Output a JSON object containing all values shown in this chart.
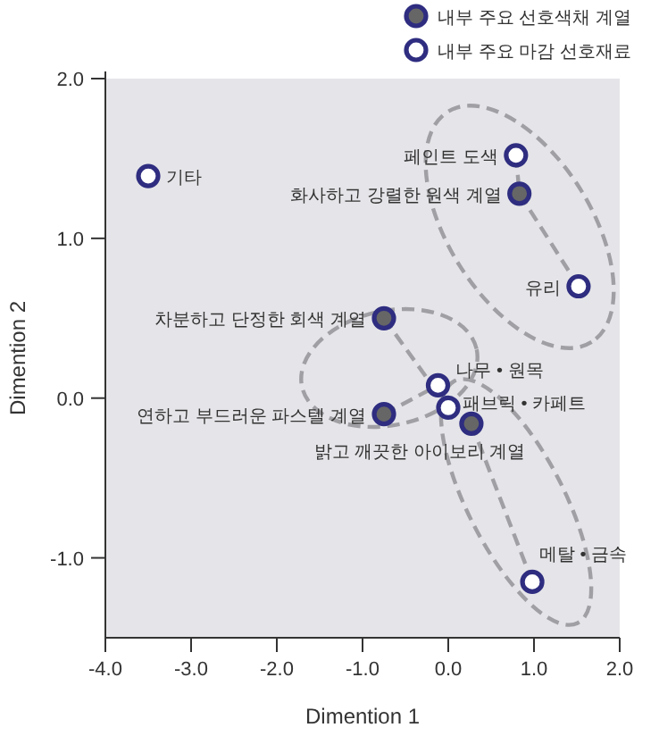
{
  "chart_data": {
    "type": "scatter",
    "xlabel": "Dimention 1",
    "ylabel": "Dimention 2",
    "xlim": [
      -4,
      2
    ],
    "ylim": [
      -1.5,
      2
    ],
    "xticks": [
      {
        "value": -4,
        "label": "-4.0"
      },
      {
        "value": -3,
        "label": "-3.0"
      },
      {
        "value": -2,
        "label": "-2.0"
      },
      {
        "value": -1,
        "label": "-1.0"
      },
      {
        "value": 0,
        "label": "0.0"
      },
      {
        "value": 1,
        "label": "1.0"
      },
      {
        "value": 2,
        "label": "2.0"
      }
    ],
    "yticks": [
      {
        "value": -1,
        "label": "-1.0"
      },
      {
        "value": 0,
        "label": "0.0"
      },
      {
        "value": 1,
        "label": "1.0"
      },
      {
        "value": 2,
        "label": "2.0"
      }
    ],
    "legend": "top right",
    "marker": "circle",
    "grid": false,
    "series": [
      {
        "name": "내부 주요 선호색채 계열",
        "color": "#666666",
        "x": [
          0.83,
          -0.75,
          -0.75,
          0.27
        ],
        "values": [
          1.28,
          0.5,
          -0.1,
          -0.16
        ]
      },
      {
        "name": "내부 주요 마감 선호재료",
        "color": "#ffffff",
        "x": [
          0.79,
          -3.5,
          1.52,
          -0.12,
          0.0,
          0.98
        ],
        "values": [
          1.52,
          1.39,
          0.7,
          0.08,
          -0.06,
          -1.15
        ]
      }
    ],
    "annotations": [
      {
        "text": "화사하고 강렬한 원색 계열",
        "x": 0.83,
        "y": 1.28
      },
      {
        "text": "차분하고 단정한 회색 계열",
        "x": -0.75,
        "y": 0.5
      },
      {
        "text": "연하고 부드러운 파스텔 계열",
        "x": -0.75,
        "y": -0.1
      },
      {
        "text": "밝고 깨끗한 아이보리 계열",
        "x": 0.27,
        "y": -0.16
      },
      {
        "text": "페인트 도색",
        "x": 0.79,
        "y": 1.52
      },
      {
        "text": "기타",
        "x": -3.5,
        "y": 1.39
      },
      {
        "text": "유리",
        "x": 1.52,
        "y": 0.7
      },
      {
        "text": "나무 • 원목",
        "x": -0.12,
        "y": 0.08
      },
      {
        "text": "패브릭 • 카페트",
        "x": 0.0,
        "y": -0.06
      },
      {
        "text": "메탈 • 금속",
        "x": 0.98,
        "y": -1.15
      }
    ]
  }
}
